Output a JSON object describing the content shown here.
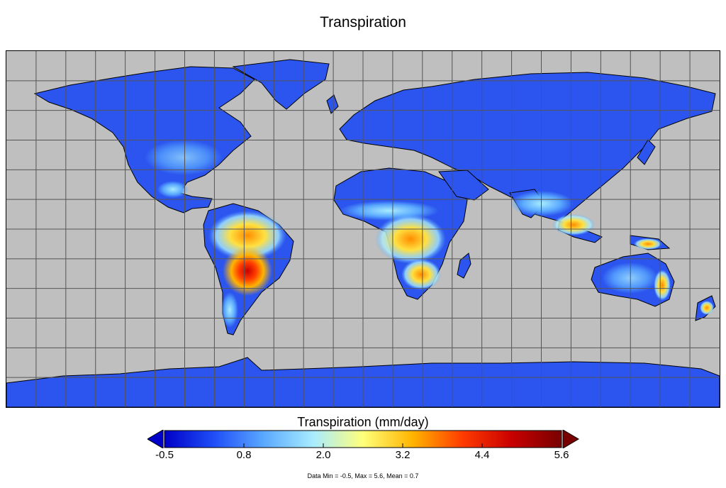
{
  "title": "Transpiration",
  "colorbar": {
    "label": "Transpiration (mm/day)",
    "min": -0.5,
    "max": 5.6,
    "ticks": [
      "-0.5",
      "0.8",
      "2.0",
      "3.2",
      "4.4",
      "5.6"
    ],
    "colors": [
      "#0000c8",
      "#1f4ef7",
      "#5aa8ff",
      "#a8ecff",
      "#ffff7a",
      "#ffb400",
      "#ff3c00",
      "#c80000",
      "#780000"
    ],
    "extend_low_color": "#0000c8",
    "extend_high_color": "#780000"
  },
  "stats": "Data Min = -0.5, Max = 5.6, Mean = 0.7",
  "map": {
    "ocean_color": "#bfbfbf",
    "land_base_color": "#2b55ee",
    "grid": true,
    "grid_color": "#555555"
  }
}
